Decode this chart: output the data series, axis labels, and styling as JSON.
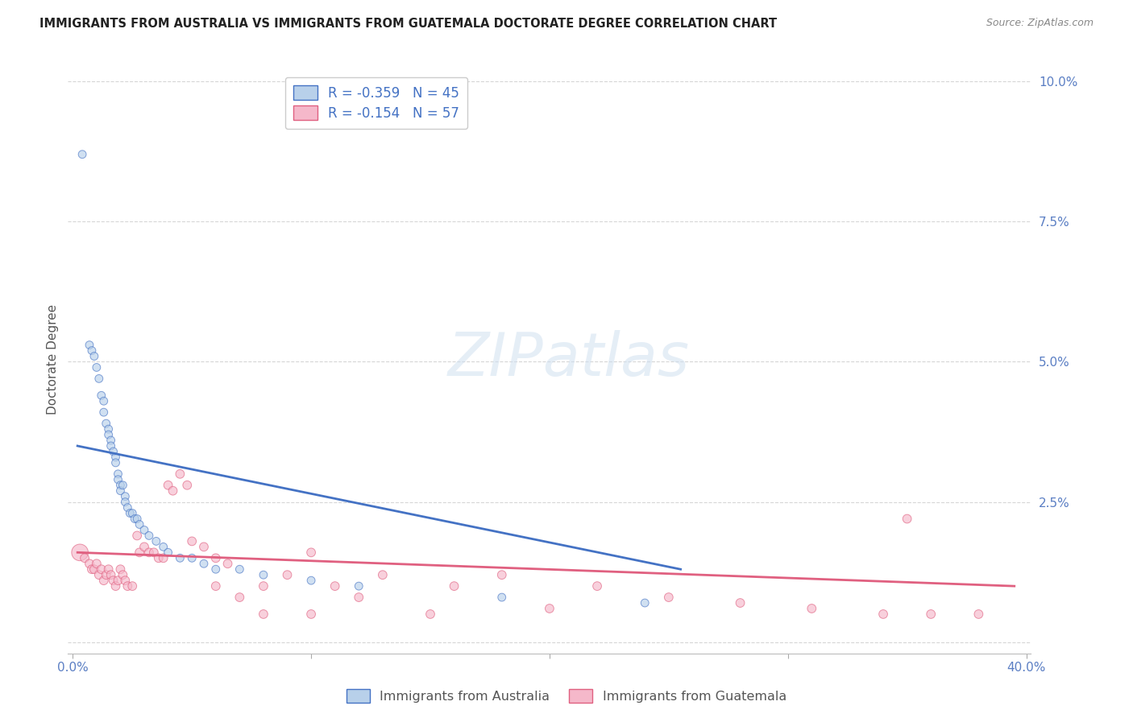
{
  "title": "IMMIGRANTS FROM AUSTRALIA VS IMMIGRANTS FROM GUATEMALA DOCTORATE DEGREE CORRELATION CHART",
  "source": "Source: ZipAtlas.com",
  "ylabel": "Doctorate Degree",
  "ytick_labels": [
    "",
    "2.5%",
    "5.0%",
    "7.5%",
    "10.0%"
  ],
  "ytick_values": [
    0.0,
    0.025,
    0.05,
    0.075,
    0.1
  ],
  "xlim": [
    -0.002,
    0.402
  ],
  "ylim": [
    -0.002,
    0.103
  ],
  "legend1_label": "R = -0.359   N = 45",
  "legend2_label": "R = -0.154   N = 57",
  "legend1_fill": "#b8d0ea",
  "legend2_fill": "#f5b8ca",
  "line1_color": "#4472c4",
  "line2_color": "#e06080",
  "dot1_edge": "#4472c4",
  "dot2_edge": "#e06080",
  "watermark_color": "#d0e0f0",
  "australia_x": [
    0.004,
    0.007,
    0.008,
    0.009,
    0.01,
    0.011,
    0.012,
    0.013,
    0.013,
    0.014,
    0.015,
    0.015,
    0.016,
    0.016,
    0.017,
    0.018,
    0.018,
    0.019,
    0.019,
    0.02,
    0.02,
    0.021,
    0.022,
    0.022,
    0.023,
    0.024,
    0.025,
    0.026,
    0.027,
    0.028,
    0.03,
    0.032,
    0.035,
    0.038,
    0.04,
    0.045,
    0.05,
    0.055,
    0.06,
    0.07,
    0.08,
    0.1,
    0.12,
    0.18,
    0.24
  ],
  "australia_y": [
    0.087,
    0.053,
    0.052,
    0.051,
    0.049,
    0.047,
    0.044,
    0.043,
    0.041,
    0.039,
    0.038,
    0.037,
    0.036,
    0.035,
    0.034,
    0.033,
    0.032,
    0.03,
    0.029,
    0.028,
    0.027,
    0.028,
    0.026,
    0.025,
    0.024,
    0.023,
    0.023,
    0.022,
    0.022,
    0.021,
    0.02,
    0.019,
    0.018,
    0.017,
    0.016,
    0.015,
    0.015,
    0.014,
    0.013,
    0.013,
    0.012,
    0.011,
    0.01,
    0.008,
    0.007
  ],
  "australia_sizes_s": [
    50,
    50,
    50,
    50,
    50,
    50,
    50,
    50,
    50,
    50,
    50,
    50,
    50,
    50,
    50,
    50,
    50,
    50,
    50,
    50,
    50,
    50,
    50,
    50,
    50,
    50,
    50,
    50,
    50,
    50,
    50,
    50,
    50,
    50,
    50,
    50,
    50,
    50,
    50,
    50,
    50,
    50,
    50,
    50,
    50
  ],
  "guatemala_x": [
    0.003,
    0.005,
    0.007,
    0.008,
    0.009,
    0.01,
    0.011,
    0.012,
    0.013,
    0.014,
    0.015,
    0.016,
    0.017,
    0.018,
    0.019,
    0.02,
    0.021,
    0.022,
    0.023,
    0.025,
    0.027,
    0.028,
    0.03,
    0.032,
    0.034,
    0.036,
    0.038,
    0.04,
    0.042,
    0.045,
    0.048,
    0.05,
    0.055,
    0.06,
    0.065,
    0.07,
    0.08,
    0.09,
    0.1,
    0.11,
    0.12,
    0.13,
    0.15,
    0.16,
    0.18,
    0.2,
    0.22,
    0.25,
    0.28,
    0.31,
    0.34,
    0.36,
    0.38,
    0.06,
    0.08,
    0.1,
    0.35
  ],
  "guatemala_y": [
    0.016,
    0.015,
    0.014,
    0.013,
    0.013,
    0.014,
    0.012,
    0.013,
    0.011,
    0.012,
    0.013,
    0.012,
    0.011,
    0.01,
    0.011,
    0.013,
    0.012,
    0.011,
    0.01,
    0.01,
    0.019,
    0.016,
    0.017,
    0.016,
    0.016,
    0.015,
    0.015,
    0.028,
    0.027,
    0.03,
    0.028,
    0.018,
    0.017,
    0.015,
    0.014,
    0.008,
    0.01,
    0.012,
    0.016,
    0.01,
    0.008,
    0.012,
    0.005,
    0.01,
    0.012,
    0.006,
    0.01,
    0.008,
    0.007,
    0.006,
    0.005,
    0.005,
    0.005,
    0.01,
    0.005,
    0.005,
    0.022
  ],
  "guatemala_sizes_s": [
    220,
    60,
    60,
    60,
    60,
    60,
    60,
    60,
    60,
    60,
    60,
    60,
    60,
    60,
    60,
    60,
    60,
    60,
    60,
    60,
    60,
    60,
    60,
    60,
    60,
    60,
    60,
    60,
    60,
    60,
    60,
    60,
    60,
    60,
    60,
    60,
    60,
    60,
    60,
    60,
    60,
    60,
    60,
    60,
    60,
    60,
    60,
    60,
    60,
    60,
    60,
    60,
    60,
    60,
    60,
    60,
    60
  ],
  "trendline_aus_x0": 0.002,
  "trendline_aus_x1": 0.255,
  "trendline_aus_y0": 0.035,
  "trendline_aus_y1": 0.013,
  "trendline_guat_x0": 0.002,
  "trendline_guat_x1": 0.395,
  "trendline_guat_y0": 0.016,
  "trendline_guat_y1": 0.01
}
